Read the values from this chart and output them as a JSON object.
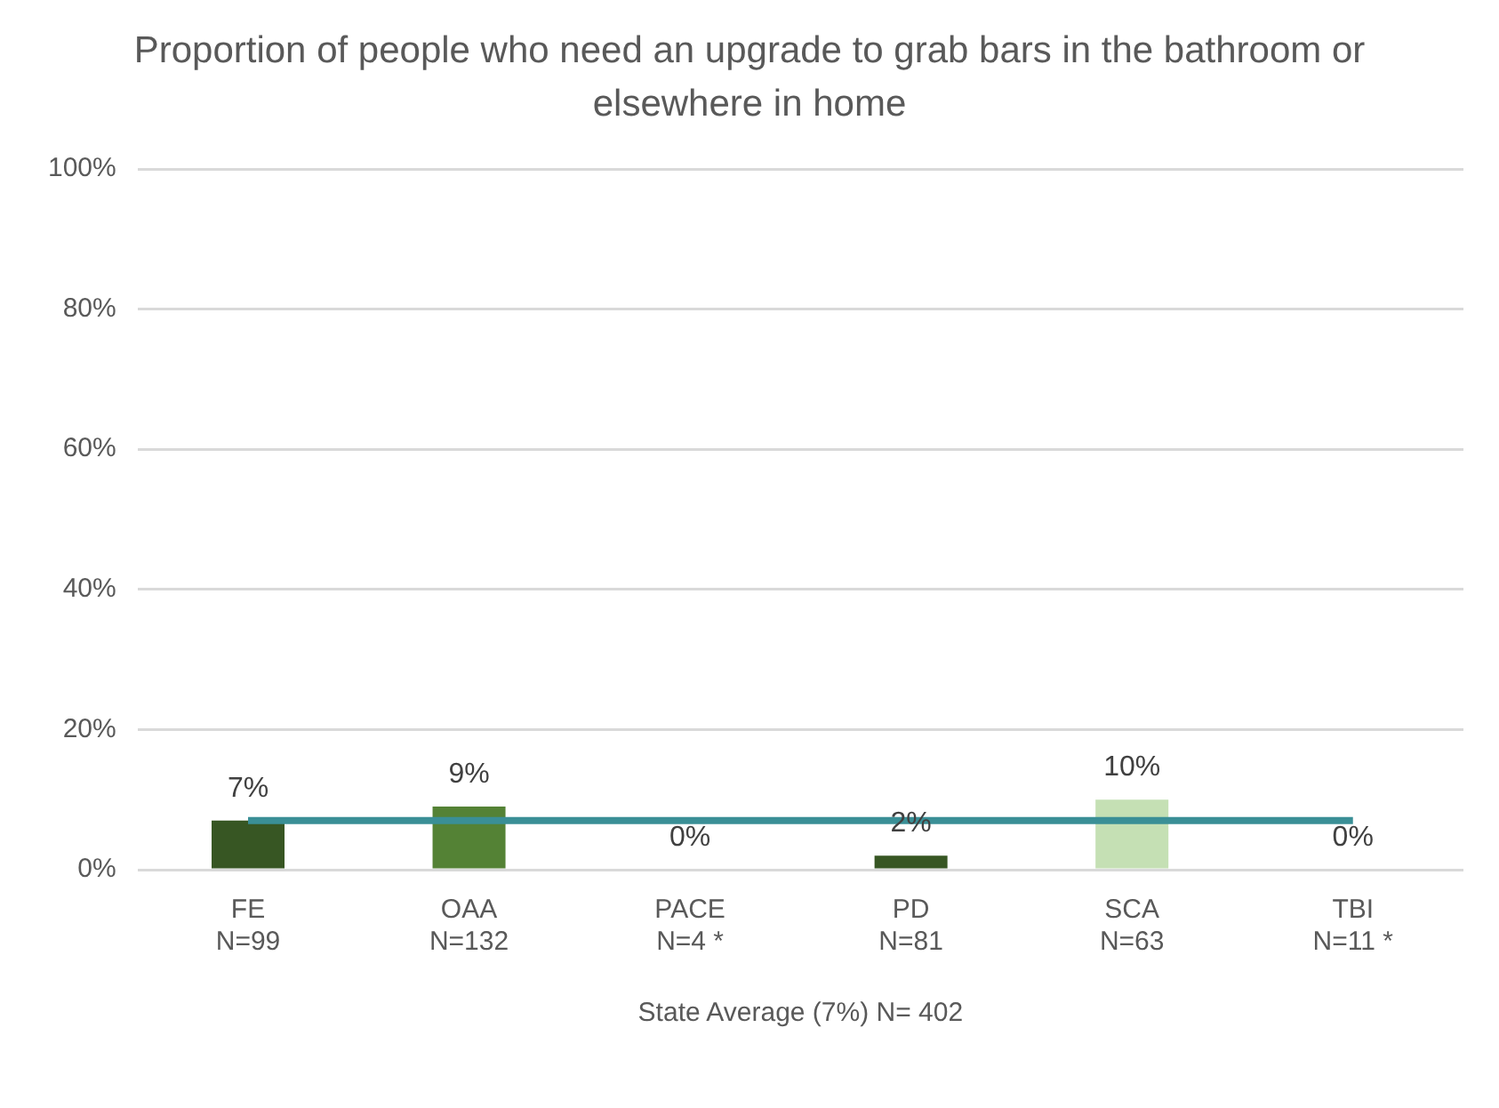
{
  "chart_data": {
    "type": "bar",
    "title": "Proportion of people who need an upgrade to grab bars in the bathroom or elsewhere in home",
    "xlabel": "State Average (7%) N= 402",
    "categories": [
      "FE\nN=99",
      "OAA\nN=132",
      "PACE\nN=4 *",
      "PD\nN=81",
      "SCA\nN=63",
      "TBI\nN=11 *"
    ],
    "series": [
      {
        "type": "bar",
        "colors": [
          "#375623",
          "#548235",
          "#a9d18e",
          "#375623",
          "#c5e0b4",
          "#70ad47"
        ],
        "values": [
          7,
          9,
          0,
          2,
          10,
          0
        ],
        "value_labels": [
          "7%",
          "9%",
          "0%",
          "2%",
          "10%",
          "0%"
        ]
      },
      {
        "type": "line",
        "color": "#3a8f96",
        "values": [
          7,
          7,
          7,
          7,
          7,
          7
        ]
      }
    ],
    "ylim": [
      0,
      100
    ],
    "yticks": [
      {
        "value": 0,
        "label": "0%"
      },
      {
        "value": 20,
        "label": "20%"
      },
      {
        "value": 40,
        "label": "40%"
      },
      {
        "value": 60,
        "label": "60%"
      },
      {
        "value": 80,
        "label": "80%"
      },
      {
        "value": 100,
        "label": "100%"
      }
    ],
    "grid": "y",
    "legend": false,
    "marker": "none"
  }
}
